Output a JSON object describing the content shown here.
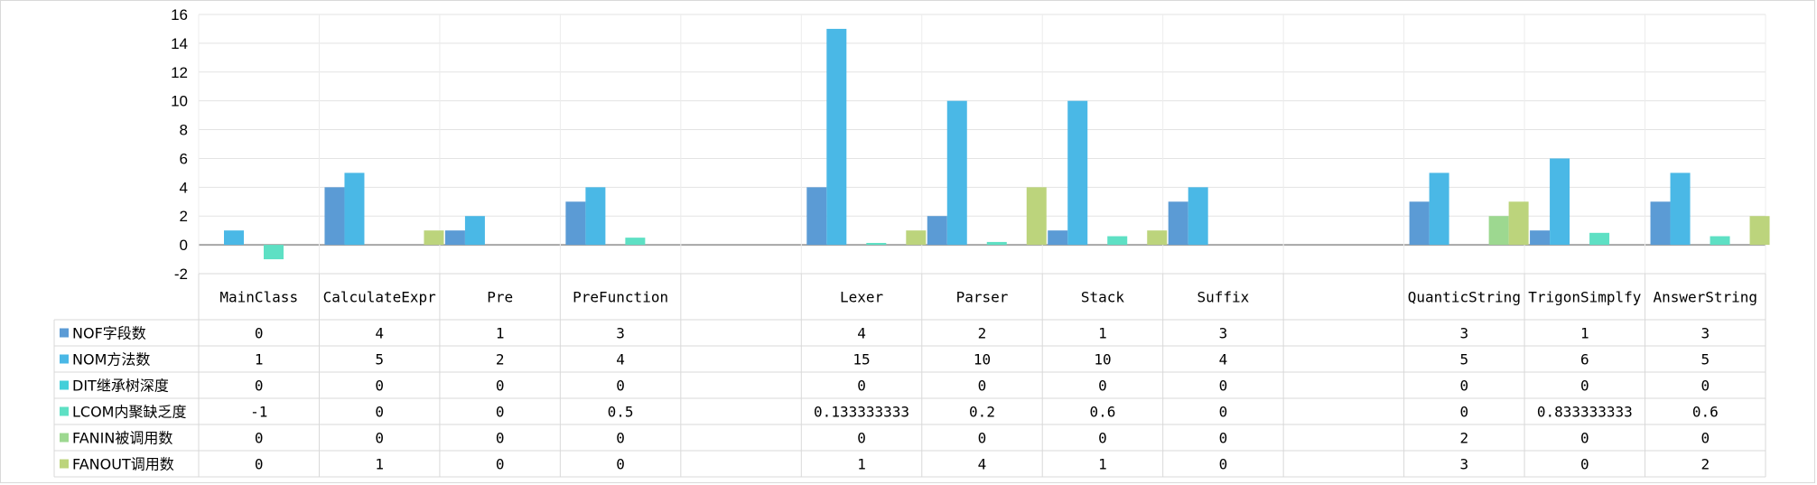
{
  "chart_data": {
    "type": "bar",
    "categories": [
      "MainClass",
      "CalculateExpr",
      "Pre",
      "PreFunction",
      "",
      "Lexer",
      "Parser",
      "Stack",
      "Suffix",
      "",
      "QuanticString",
      "TrigonSimplfy",
      "AnswerString"
    ],
    "series": [
      {
        "name": "NOF字段数",
        "color": "#5b9bd5",
        "values": [
          0,
          4,
          1,
          3,
          null,
          4,
          2,
          1,
          3,
          null,
          3,
          1,
          3
        ],
        "labels": [
          "0",
          "4",
          "1",
          "3",
          "",
          "4",
          "2",
          "1",
          "3",
          "",
          "3",
          "1",
          "3"
        ]
      },
      {
        "name": "NOM方法数",
        "color": "#4ab8e6",
        "values": [
          1,
          5,
          2,
          4,
          null,
          15,
          10,
          10,
          4,
          null,
          5,
          6,
          5
        ],
        "labels": [
          "1",
          "5",
          "2",
          "4",
          "",
          "15",
          "10",
          "10",
          "4",
          "",
          "5",
          "6",
          "5"
        ]
      },
      {
        "name": "DIT继承树深度",
        "color": "#43cfd9",
        "values": [
          0,
          0,
          0,
          0,
          null,
          0,
          0,
          0,
          0,
          null,
          0,
          0,
          0
        ],
        "labels": [
          "0",
          "0",
          "0",
          "0",
          "",
          "0",
          "0",
          "0",
          "0",
          "",
          "0",
          "0",
          "0"
        ]
      },
      {
        "name": "LCOM内聚缺乏度",
        "color": "#5ee0c4",
        "values": [
          -1,
          0,
          0,
          0.5,
          null,
          0.133333333,
          0.2,
          0.6,
          0,
          null,
          0,
          0.833333333,
          0.6
        ],
        "labels": [
          "-1",
          "0",
          "0",
          "0.5",
          "",
          "0.133333333",
          "0.2",
          "0.6",
          "0",
          "",
          "0",
          "0.833333333",
          "0.6"
        ]
      },
      {
        "name": "FANIN被调用数",
        "color": "#9dd890",
        "values": [
          0,
          0,
          0,
          0,
          null,
          0,
          0,
          0,
          0,
          null,
          2,
          0,
          0
        ],
        "labels": [
          "0",
          "0",
          "0",
          "0",
          "",
          "0",
          "0",
          "0",
          "0",
          "",
          "2",
          "0",
          "0"
        ]
      },
      {
        "name": "FANOUT调用数",
        "color": "#bcd47c",
        "values": [
          0,
          1,
          0,
          0,
          null,
          1,
          4,
          1,
          0,
          null,
          3,
          0,
          2
        ],
        "labels": [
          "0",
          "1",
          "0",
          "0",
          "",
          "1",
          "4",
          "1",
          "0",
          "",
          "3",
          "0",
          "2"
        ]
      }
    ],
    "ylim": [
      -2,
      16
    ],
    "yticks": [
      -2,
      0,
      2,
      4,
      6,
      8,
      10,
      12,
      14,
      16
    ],
    "grid": true,
    "legend": "data-table-left",
    "data_table": true
  }
}
